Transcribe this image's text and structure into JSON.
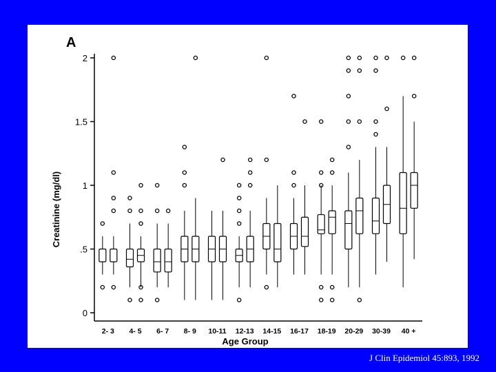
{
  "colors": {
    "slide_background": "#0000ff",
    "panel_background": "#ffffff",
    "ink": "#000000",
    "citation_text": "#ffffff"
  },
  "citation": "J Clin Epidemiol 45:893, 1992",
  "chart_data": {
    "type": "box",
    "panel_label": "A",
    "xlabel": "Age Group",
    "ylabel": "Creatinine (mg/dl)",
    "ylim": [
      0,
      2
    ],
    "yticks": [
      {
        "value": 2,
        "label": "2"
      },
      {
        "value": 1.5,
        "label": "1.5"
      },
      {
        "value": 1,
        "label": "1"
      },
      {
        "value": 0.5,
        "label": ".5"
      },
      {
        "value": 0,
        "label": "0"
      }
    ],
    "groups": [
      {
        "label": "2- 3",
        "boxes": [
          {
            "low": 0.3,
            "q1": 0.4,
            "median": 0.5,
            "q3": 0.5,
            "high": 0.6,
            "outliers": [
              0.7,
              0.2
            ]
          },
          {
            "low": 0.3,
            "q1": 0.4,
            "median": 0.5,
            "q3": 0.5,
            "high": 0.6,
            "outliers": [
              2.0,
              1.1,
              0.9,
              0.8,
              0.2
            ]
          }
        ]
      },
      {
        "label": "4- 5",
        "boxes": [
          {
            "low": 0.2,
            "q1": 0.36,
            "median": 0.42,
            "q3": 0.5,
            "high": 0.7,
            "outliers": [
              0.9,
              0.8,
              0.1
            ]
          },
          {
            "low": 0.2,
            "q1": 0.4,
            "median": 0.45,
            "q3": 0.5,
            "high": 0.6,
            "outliers": [
              1.0,
              0.8,
              0.7,
              0.2,
              0.1
            ]
          }
        ]
      },
      {
        "label": "6- 7",
        "boxes": [
          {
            "low": 0.2,
            "q1": 0.32,
            "median": 0.4,
            "q3": 0.5,
            "high": 0.7,
            "outliers": [
              1.0,
              0.8,
              0.1
            ]
          },
          {
            "low": 0.2,
            "q1": 0.32,
            "median": 0.4,
            "q3": 0.5,
            "high": 0.7,
            "outliers": [
              0.8
            ]
          }
        ]
      },
      {
        "label": "8- 9",
        "boxes": [
          {
            "low": 0.1,
            "q1": 0.4,
            "median": 0.5,
            "q3": 0.6,
            "high": 0.8,
            "outliers": [
              1.3,
              1.1,
              1.0
            ]
          },
          {
            "low": 0.1,
            "q1": 0.4,
            "median": 0.5,
            "q3": 0.6,
            "high": 0.9,
            "outliers": [
              2.0
            ]
          }
        ]
      },
      {
        "label": "10-11",
        "boxes": [
          {
            "low": 0.1,
            "q1": 0.4,
            "median": 0.5,
            "q3": 0.6,
            "high": 0.8,
            "outliers": []
          },
          {
            "low": 0.1,
            "q1": 0.4,
            "median": 0.5,
            "q3": 0.6,
            "high": 0.8,
            "outliers": [
              1.2
            ]
          }
        ]
      },
      {
        "label": "12-13",
        "boxes": [
          {
            "low": 0.2,
            "q1": 0.4,
            "median": 0.45,
            "q3": 0.5,
            "high": 0.6,
            "outliers": [
              1.0,
              0.9,
              0.8,
              0.7,
              0.1
            ]
          },
          {
            "low": 0.2,
            "q1": 0.4,
            "median": 0.5,
            "q3": 0.6,
            "high": 0.8,
            "outliers": [
              1.2,
              1.1,
              1.0
            ]
          }
        ]
      },
      {
        "label": "14-15",
        "boxes": [
          {
            "low": 0.3,
            "q1": 0.5,
            "median": 0.6,
            "q3": 0.7,
            "high": 0.9,
            "outliers": [
              2.0,
              1.2,
              0.2
            ]
          },
          {
            "low": 0.2,
            "q1": 0.4,
            "median": 0.5,
            "q3": 0.7,
            "high": 1.0,
            "outliers": []
          }
        ]
      },
      {
        "label": "16-17",
        "boxes": [
          {
            "low": 0.3,
            "q1": 0.5,
            "median": 0.6,
            "q3": 0.7,
            "high": 0.9,
            "outliers": [
              1.7,
              1.1,
              1.0
            ]
          },
          {
            "low": 0.3,
            "q1": 0.52,
            "median": 0.6,
            "q3": 0.75,
            "high": 1.0,
            "outliers": [
              1.5
            ]
          }
        ]
      },
      {
        "label": "18-19",
        "boxes": [
          {
            "low": 0.3,
            "q1": 0.62,
            "median": 0.65,
            "q3": 0.77,
            "high": 1.0,
            "outliers": [
              1.5,
              1.1,
              1.0,
              0.2,
              0.1
            ]
          },
          {
            "low": 0.3,
            "q1": 0.62,
            "median": 0.75,
            "q3": 0.8,
            "high": 1.0,
            "outliers": [
              1.2,
              1.1,
              0.2,
              0.1
            ]
          }
        ]
      },
      {
        "label": "20-29",
        "boxes": [
          {
            "low": 0.2,
            "q1": 0.5,
            "median": 0.7,
            "q3": 0.8,
            "high": 1.1,
            "outliers": [
              2.0,
              1.9,
              1.7,
              1.5,
              1.3
            ]
          },
          {
            "low": 0.2,
            "q1": 0.62,
            "median": 0.8,
            "q3": 0.9,
            "high": 1.2,
            "outliers": [
              2.0,
              1.9,
              1.5,
              0.1
            ]
          }
        ]
      },
      {
        "label": "30-39",
        "boxes": [
          {
            "low": 0.3,
            "q1": 0.62,
            "median": 0.72,
            "q3": 0.9,
            "high": 1.3,
            "outliers": [
              2.0,
              1.9,
              1.5,
              1.4
            ]
          },
          {
            "low": 0.4,
            "q1": 0.7,
            "median": 0.85,
            "q3": 1.0,
            "high": 1.3,
            "outliers": [
              2.0,
              1.6
            ]
          }
        ]
      },
      {
        "label": "40 +",
        "boxes": [
          {
            "low": 0.2,
            "q1": 0.62,
            "median": 0.82,
            "q3": 1.1,
            "high": 1.7,
            "outliers": [
              2.0
            ]
          },
          {
            "low": 0.42,
            "q1": 0.82,
            "median": 1.0,
            "q3": 1.1,
            "high": 1.5,
            "outliers": [
              2.0,
              1.7
            ]
          }
        ]
      }
    ]
  }
}
